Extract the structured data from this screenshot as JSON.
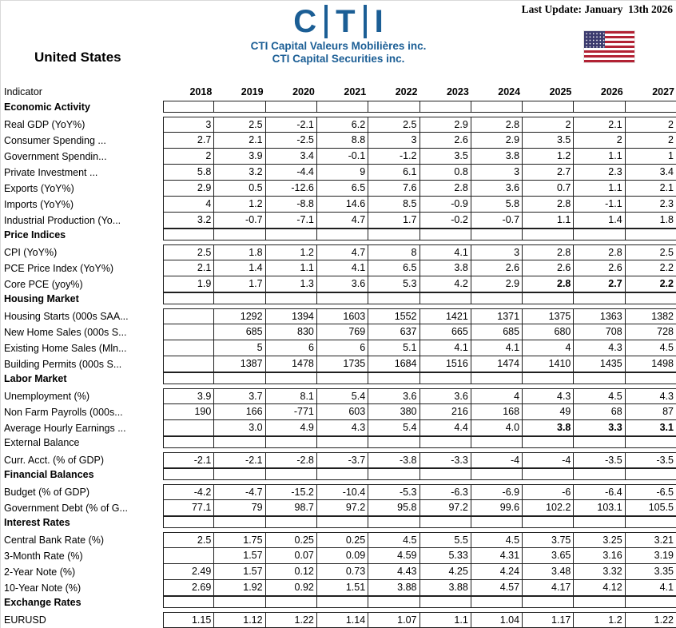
{
  "header": {
    "last_update": "Last Update: January  13th 2026",
    "logo_letters": [
      "C",
      "T",
      "I"
    ],
    "company_line1": "CTI Capital Valeurs Mobilières inc.",
    "company_line2": "CTI Capital Securities inc.",
    "country_title": "United States",
    "brand_color": "#1b5e95",
    "flag_icon": "us-flag"
  },
  "table": {
    "indicator_header": "Indicator",
    "years": [
      "2018",
      "2019",
      "2020",
      "2021",
      "2022",
      "2023",
      "2024",
      "2025",
      "2026",
      "2027"
    ],
    "sections": [
      {
        "title": "Economic Activity",
        "rows": [
          {
            "label": "Real GDP (YoY%)",
            "values": [
              "3",
              "2.5",
              "-2.1",
              "6.2",
              "2.5",
              "2.9",
              "2.8",
              "2",
              "2.1",
              "2"
            ]
          },
          {
            "label": "Consumer Spending ...",
            "values": [
              "2.7",
              "2.1",
              "-2.5",
              "8.8",
              "3",
              "2.6",
              "2.9",
              "3.5",
              "2",
              "2"
            ]
          },
          {
            "label": "Government Spendin...",
            "values": [
              "2",
              "3.9",
              "3.4",
              "-0.1",
              "-1.2",
              "3.5",
              "3.8",
              "1.2",
              "1.1",
              "1"
            ]
          },
          {
            "label": "Private Investment ...",
            "values": [
              "5.8",
              "3.2",
              "-4.4",
              "9",
              "6.1",
              "0.8",
              "3",
              "2.7",
              "2.3",
              "3.4"
            ]
          },
          {
            "label": "Exports (YoY%)",
            "values": [
              "2.9",
              "0.5",
              "-12.6",
              "6.5",
              "7.6",
              "2.8",
              "3.6",
              "0.7",
              "1.1",
              "2.1"
            ]
          },
          {
            "label": "Imports (YoY%)",
            "values": [
              "4",
              "1.2",
              "-8.8",
              "14.6",
              "8.5",
              "-0.9",
              "5.8",
              "2.8",
              "-1.1",
              "2.3"
            ]
          },
          {
            "label": "Industrial Production (Yo...",
            "values": [
              "3.2",
              "-0.7",
              "-7.1",
              "4.7",
              "1.7",
              "-0.2",
              "-0.7",
              "1.1",
              "1.4",
              "1.8"
            ]
          }
        ]
      },
      {
        "title": "Price Indices",
        "rows": [
          {
            "label": "CPI (YoY%)",
            "values": [
              "2.5",
              "1.8",
              "1.2",
              "4.7",
              "8",
              "4.1",
              "3",
              "2.8",
              "2.8",
              "2.5"
            ]
          },
          {
            "label": "PCE Price Index (YoY%)",
            "values": [
              "2.1",
              "1.4",
              "1.1",
              "4.1",
              "6.5",
              "3.8",
              "2.6",
              "2.6",
              "2.6",
              "2.2"
            ]
          },
          {
            "label": "Core PCE (yoy%)",
            "values": [
              "1.9",
              "1.7",
              "1.3",
              "3.6",
              "5.3",
              "4.2",
              "2.9",
              "2.8",
              "2.7",
              "2.2"
            ],
            "bold_from": 7
          }
        ]
      },
      {
        "title": "Housing Market",
        "rows": [
          {
            "label": "Housing Starts (000s SAA...",
            "values": [
              "",
              "1292",
              "1394",
              "1603",
              "1552",
              "1421",
              "1371",
              "1375",
              "1363",
              "1382"
            ]
          },
          {
            "label": "New Home Sales (000s S...",
            "values": [
              "",
              "685",
              "830",
              "769",
              "637",
              "665",
              "685",
              "680",
              "708",
              "728"
            ]
          },
          {
            "label": "Existing Home Sales (Mln...",
            "values": [
              "",
              "5",
              "6",
              "6",
              "5.1",
              "4.1",
              "4.1",
              "4",
              "4.3",
              "4.5"
            ]
          },
          {
            "label": "Building Permits (000s S...",
            "values": [
              "",
              "1387",
              "1478",
              "1735",
              "1684",
              "1516",
              "1474",
              "1410",
              "1435",
              "1498"
            ]
          }
        ]
      },
      {
        "title": "Labor Market",
        "rows": [
          {
            "label": "Unemployment (%)",
            "values": [
              "3.9",
              "3.7",
              "8.1",
              "5.4",
              "3.6",
              "3.6",
              "4",
              "4.3",
              "4.5",
              "4.3"
            ]
          },
          {
            "label": "Non Farm Payrolls (000s...",
            "values": [
              "190",
              "166",
              "-771",
              "603",
              "380",
              "216",
              "168",
              "49",
              "68",
              "87"
            ]
          },
          {
            "label": "Average Hourly Earnings ...",
            "values": [
              "",
              "3.0",
              "4.9",
              "4.3",
              "5.4",
              "4.4",
              "4.0",
              "3.8",
              "3.3",
              "3.1"
            ],
            "bold_from": 7
          }
        ]
      },
      {
        "title": "External Balance",
        "title_bold": false,
        "rows": [
          {
            "label": "Curr. Acct. (% of GDP)",
            "values": [
              "-2.1",
              "-2.1",
              "-2.8",
              "-3.7",
              "-3.8",
              "-3.3",
              "-4",
              "-4",
              "-3.5",
              "-3.5"
            ]
          }
        ]
      },
      {
        "title": "Financial Balances",
        "rows": [
          {
            "label": "Budget (% of GDP)",
            "values": [
              "-4.2",
              "-4.7",
              "-15.2",
              "-10.4",
              "-5.3",
              "-6.3",
              "-6.9",
              "-6",
              "-6.4",
              "-6.5"
            ]
          },
          {
            "label": "Government Debt (% of G...",
            "values": [
              "77.1",
              "79",
              "98.7",
              "97.2",
              "95.8",
              "97.2",
              "99.6",
              "102.2",
              "103.1",
              "105.5"
            ]
          }
        ]
      },
      {
        "title": "Interest Rates",
        "rows": [
          {
            "label": "Central Bank Rate (%)",
            "values": [
              "2.5",
              "1.75",
              "0.25",
              "0.25",
              "4.5",
              "5.5",
              "4.5",
              "3.75",
              "3.25",
              "3.21"
            ]
          },
          {
            "label": "3-Month Rate (%)",
            "values": [
              "",
              "1.57",
              "0.07",
              "0.09",
              "4.59",
              "5.33",
              "4.31",
              "3.65",
              "3.16",
              "3.19"
            ]
          },
          {
            "label": "2-Year Note (%)",
            "values": [
              "2.49",
              "1.57",
              "0.12",
              "0.73",
              "4.43",
              "4.25",
              "4.24",
              "3.48",
              "3.32",
              "3.35"
            ]
          },
          {
            "label": "10-Year Note (%)",
            "values": [
              "2.69",
              "1.92",
              "0.92",
              "1.51",
              "3.88",
              "3.88",
              "4.57",
              "4.17",
              "4.12",
              "4.1"
            ]
          }
        ]
      },
      {
        "title": "Exchange Rates",
        "rows": [
          {
            "label": "EURUSD",
            "values": [
              "1.15",
              "1.12",
              "1.22",
              "1.14",
              "1.07",
              "1.1",
              "1.04",
              "1.17",
              "1.2",
              "1.22"
            ]
          }
        ]
      }
    ]
  }
}
